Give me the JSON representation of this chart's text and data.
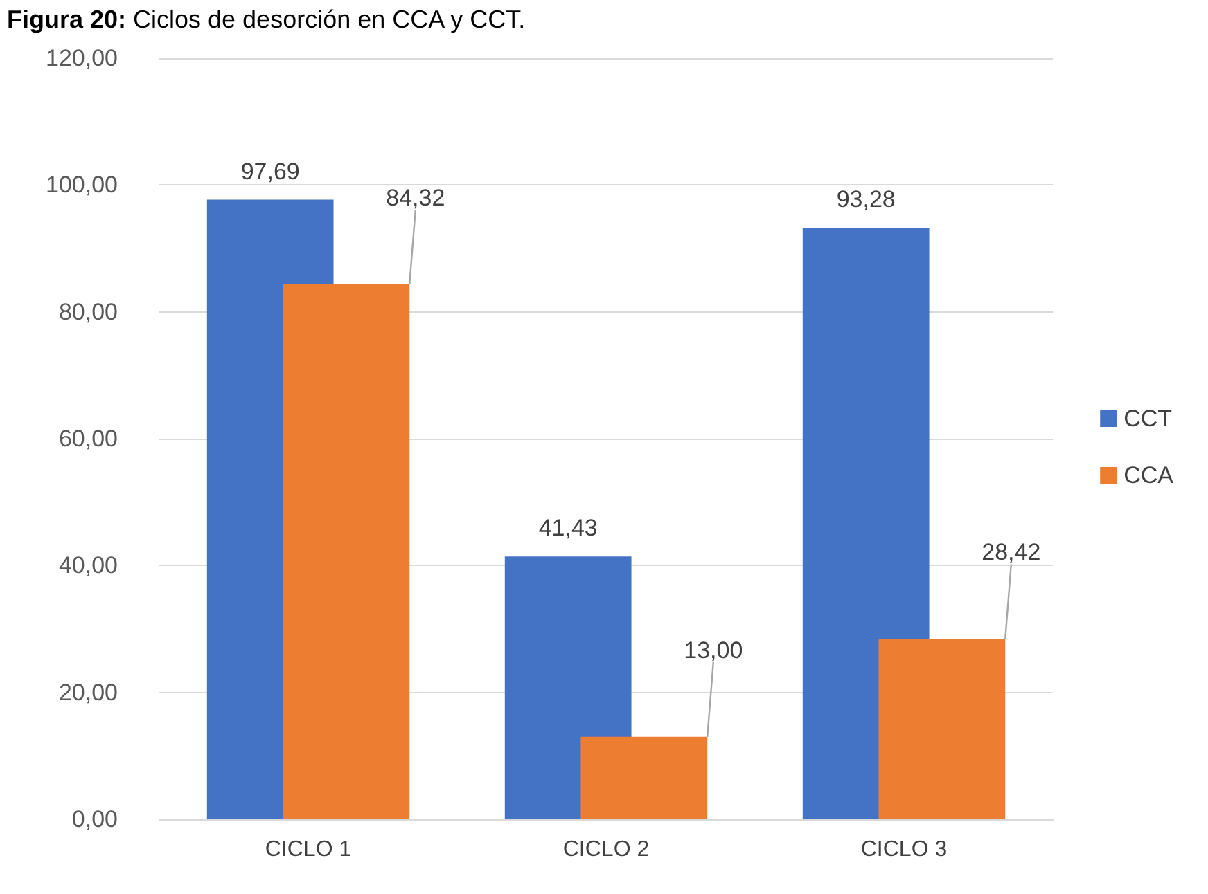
{
  "chart_data": {
    "type": "bar",
    "title": "Figura 20: Ciclos de desorción en CCA y CCT.",
    "categories": [
      "CICLO 1",
      "CICLO 2",
      "CICLO 3"
    ],
    "series": [
      {
        "name": "CCT",
        "color": "#4472c4",
        "values": [
          97.69,
          41.43,
          93.28
        ],
        "value_labels": [
          "97,69",
          "41,43",
          "93,28"
        ]
      },
      {
        "name": "CCA",
        "color": "#ed7d31",
        "values": [
          84.32,
          13.0,
          28.42
        ],
        "value_labels": [
          "84,32",
          "13,00",
          "28,42"
        ]
      }
    ],
    "ylim": [
      0,
      120
    ],
    "yticks": [
      {
        "value": 0,
        "label": "0,00"
      },
      {
        "value": 20,
        "label": "20,00"
      },
      {
        "value": 40,
        "label": "40,00"
      },
      {
        "value": 60,
        "label": "60,00"
      },
      {
        "value": 80,
        "label": "80,00"
      },
      {
        "value": 100,
        "label": "100,00"
      },
      {
        "value": 120,
        "label": "120,00"
      }
    ],
    "grid": "y",
    "legend": "right"
  }
}
